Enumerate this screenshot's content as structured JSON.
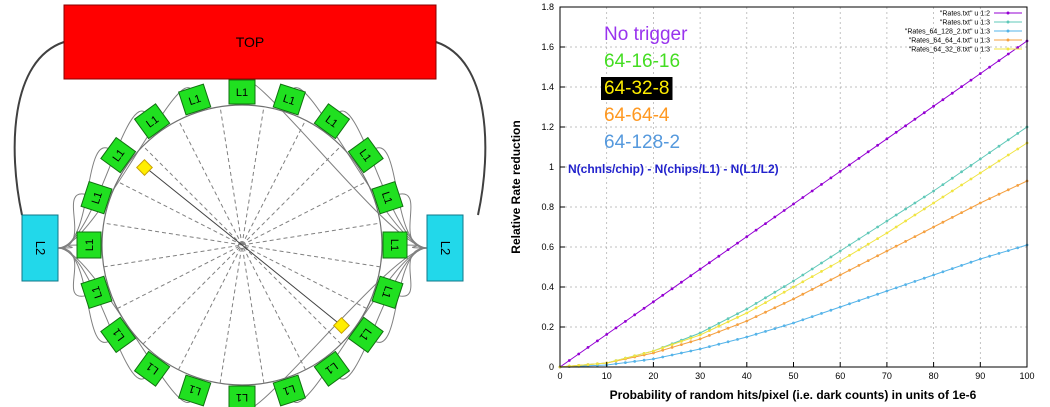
{
  "diagram": {
    "top_label": "TOP",
    "l2_label": "L2",
    "l1_label": "L1",
    "colors": {
      "top": "#ff0000",
      "l2": "#22d8ea",
      "l1": "#20e020",
      "marker": "#ffee00"
    }
  },
  "overlay": {
    "configs": [
      {
        "text": "No trigger",
        "color": "#9933ee",
        "highlight": false
      },
      {
        "text": "64-16-16",
        "color": "#44dd22",
        "highlight": false
      },
      {
        "text": "64-32-8",
        "color": "#ffee00",
        "highlight": true
      },
      {
        "text": "64-64-4",
        "color": "#ff9922",
        "highlight": false
      },
      {
        "text": "64-128-2",
        "color": "#5599dd",
        "highlight": false
      }
    ],
    "formula": "N(chnls/chip) - N(chips/L1) - N(L1/L2)",
    "formula_color": "#2222cc"
  },
  "chart_data": {
    "type": "line",
    "title": "",
    "xlabel": "Probability of random hits/pixel (i.e. dark counts) in units of 1e-6",
    "ylabel": "Relative Rate reduction",
    "xlim": [
      0,
      100
    ],
    "ylim": [
      0,
      1.8
    ],
    "xticks": [
      0,
      10,
      20,
      30,
      40,
      50,
      60,
      70,
      80,
      90,
      100
    ],
    "yticks": [
      0,
      0.2,
      0.4,
      0.6,
      0.8,
      1,
      1.2,
      1.4,
      1.6,
      1.8
    ],
    "legend_position": "top-right",
    "x": [
      0,
      10,
      20,
      30,
      40,
      50,
      60,
      70,
      80,
      90,
      100
    ],
    "series": [
      {
        "name": "\"Rates.txt\" u 1:2",
        "color": "#9400d3",
        "values": [
          0,
          0.163,
          0.326,
          0.489,
          0.652,
          0.815,
          0.978,
          1.141,
          1.304,
          1.467,
          1.63
        ]
      },
      {
        "name": "\"Rates.txt\" u 1:3",
        "color": "#5fc8b8",
        "values": [
          0,
          0.02,
          0.08,
          0.17,
          0.29,
          0.43,
          0.58,
          0.73,
          0.88,
          1.04,
          1.2
        ]
      },
      {
        "name": "\"Rates_64_128_2.txt\" u 1:3",
        "color": "#56b4e9",
        "values": [
          0,
          0.01,
          0.04,
          0.09,
          0.15,
          0.22,
          0.3,
          0.38,
          0.46,
          0.54,
          0.61
        ]
      },
      {
        "name": "\"Rates_64_64_4.txt\" u 1:3",
        "color": "#f5a142",
        "values": [
          0,
          0.02,
          0.07,
          0.14,
          0.23,
          0.34,
          0.46,
          0.58,
          0.7,
          0.82,
          0.93
        ]
      },
      {
        "name": "\"Rates_64_32_8.txt\" u 1:3",
        "color": "#f0e442",
        "values": [
          0,
          0.02,
          0.08,
          0.16,
          0.27,
          0.4,
          0.53,
          0.67,
          0.82,
          0.97,
          1.12
        ]
      }
    ]
  }
}
